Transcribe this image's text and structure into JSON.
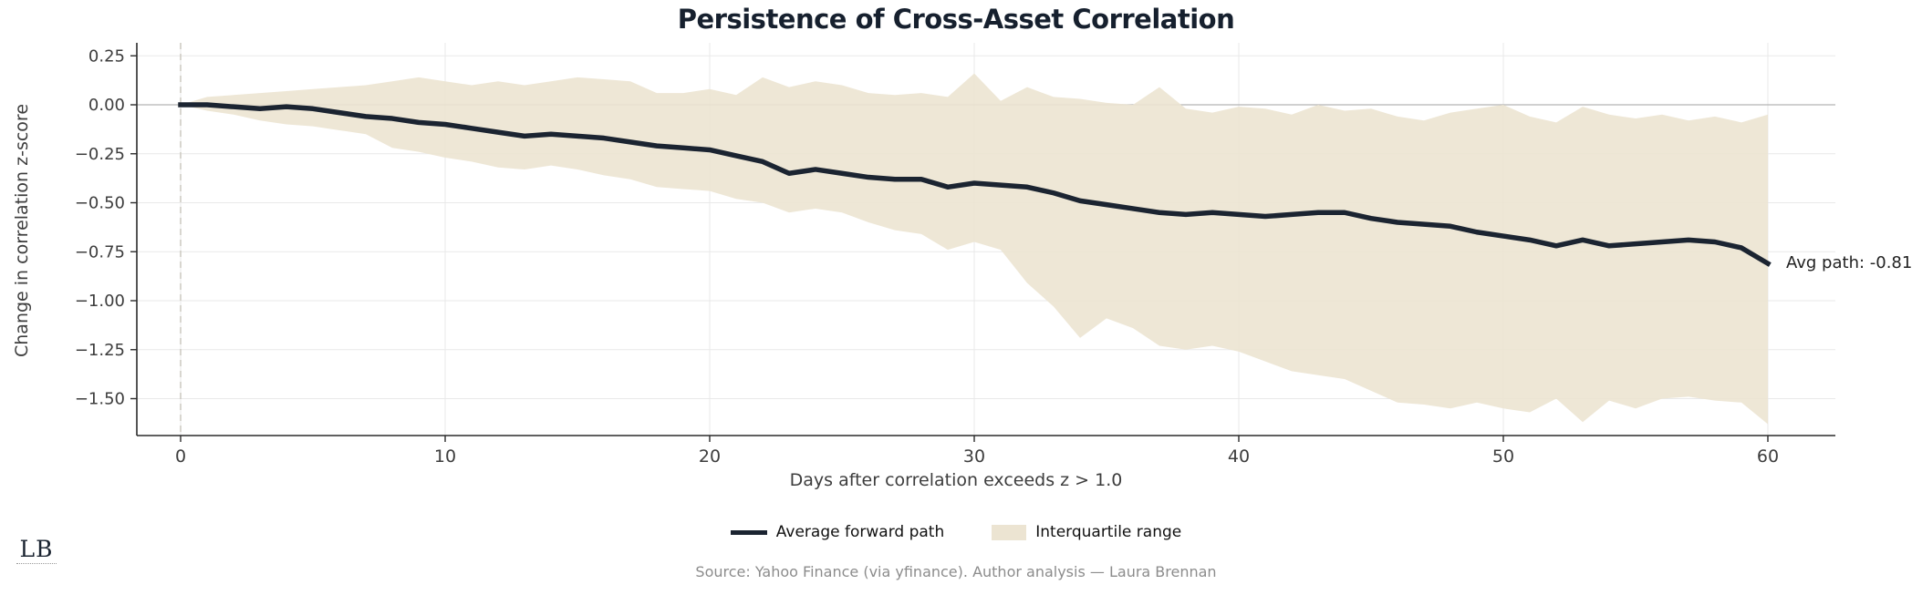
{
  "header": {
    "title": "Persistence of Cross-Asset Correlation"
  },
  "chart_data": {
    "type": "line",
    "title": "Persistence of Cross-Asset Correlation",
    "xlabel": "Days after correlation exceeds z > 1.0",
    "ylabel": "Change in correlation z-score",
    "grid": true,
    "legend_position": "bottom",
    "xlim": [
      -1.7,
      62.6
    ],
    "ylim": [
      -1.67,
      0.32
    ],
    "xticks": [
      {
        "v": 0,
        "label": "0"
      },
      {
        "v": 10,
        "label": "10"
      },
      {
        "v": 20,
        "label": "20"
      },
      {
        "v": 30,
        "label": "30"
      },
      {
        "v": 40,
        "label": "40"
      },
      {
        "v": 50,
        "label": "50"
      },
      {
        "v": 60,
        "label": "60"
      }
    ],
    "yticks": [
      {
        "v": 0.25,
        "label": "0.25"
      },
      {
        "v": 0.0,
        "label": "0.00"
      },
      {
        "v": -0.25,
        "label": "−0.25"
      },
      {
        "v": -0.5,
        "label": "−0.50"
      },
      {
        "v": -0.75,
        "label": "−0.75"
      },
      {
        "v": -1.0,
        "label": "−1.00"
      },
      {
        "v": -1.25,
        "label": "−1.25"
      },
      {
        "v": -1.5,
        "label": "−1.50"
      }
    ],
    "x": [
      0,
      1,
      2,
      3,
      4,
      5,
      6,
      7,
      8,
      9,
      10,
      11,
      12,
      13,
      14,
      15,
      16,
      17,
      18,
      19,
      20,
      21,
      22,
      23,
      24,
      25,
      26,
      27,
      28,
      29,
      30,
      31,
      32,
      33,
      34,
      35,
      36,
      37,
      38,
      39,
      40,
      41,
      42,
      43,
      44,
      45,
      46,
      47,
      48,
      49,
      50,
      51,
      52,
      53,
      54,
      55,
      56,
      57,
      58,
      59,
      60
    ],
    "series": [
      {
        "name": "Average forward path",
        "kind": "line",
        "color": "#1b2431",
        "values": [
          0.0,
          0.0,
          -0.01,
          -0.02,
          -0.01,
          -0.02,
          -0.04,
          -0.06,
          -0.07,
          -0.09,
          -0.1,
          -0.12,
          -0.14,
          -0.16,
          -0.15,
          -0.16,
          -0.17,
          -0.19,
          -0.21,
          -0.22,
          -0.23,
          -0.26,
          -0.29,
          -0.35,
          -0.33,
          -0.35,
          -0.37,
          -0.38,
          -0.38,
          -0.42,
          -0.4,
          -0.41,
          -0.42,
          -0.45,
          -0.49,
          -0.51,
          -0.53,
          -0.55,
          -0.56,
          -0.55,
          -0.56,
          -0.57,
          -0.56,
          -0.55,
          -0.55,
          -0.58,
          -0.6,
          -0.61,
          -0.62,
          -0.65,
          -0.67,
          -0.69,
          -0.72,
          -0.69,
          -0.72,
          -0.71,
          -0.7,
          -0.69,
          -0.7,
          -0.73,
          -0.81
        ]
      },
      {
        "name": "Interquartile range",
        "kind": "band",
        "color": "#ece4d2",
        "upper": [
          0.0,
          0.04,
          0.05,
          0.06,
          0.07,
          0.08,
          0.09,
          0.1,
          0.12,
          0.14,
          0.12,
          0.1,
          0.12,
          0.1,
          0.12,
          0.14,
          0.13,
          0.12,
          0.06,
          0.06,
          0.08,
          0.05,
          0.14,
          0.09,
          0.12,
          0.1,
          0.06,
          0.05,
          0.06,
          0.04,
          0.16,
          0.02,
          0.09,
          0.04,
          0.03,
          0.01,
          0.0,
          0.09,
          -0.02,
          -0.04,
          -0.01,
          -0.02,
          -0.05,
          0.0,
          -0.03,
          -0.02,
          -0.06,
          -0.08,
          -0.04,
          -0.02,
          0.0,
          -0.06,
          -0.09,
          -0.01,
          -0.05,
          -0.07,
          -0.05,
          -0.08,
          -0.06,
          -0.09,
          -0.05
        ],
        "lower": [
          0.0,
          -0.03,
          -0.05,
          -0.08,
          -0.1,
          -0.11,
          -0.13,
          -0.15,
          -0.22,
          -0.24,
          -0.27,
          -0.29,
          -0.32,
          -0.33,
          -0.31,
          -0.33,
          -0.36,
          -0.38,
          -0.42,
          -0.43,
          -0.44,
          -0.48,
          -0.5,
          -0.55,
          -0.53,
          -0.55,
          -0.6,
          -0.64,
          -0.66,
          -0.74,
          -0.7,
          -0.74,
          -0.91,
          -1.03,
          -1.19,
          -1.09,
          -1.14,
          -1.23,
          -1.25,
          -1.23,
          -1.26,
          -1.31,
          -1.36,
          -1.38,
          -1.4,
          -1.46,
          -1.52,
          -1.53,
          -1.55,
          -1.52,
          -1.55,
          -1.57,
          -1.5,
          -1.62,
          -1.51,
          -1.55,
          -1.5,
          -1.49,
          -1.51,
          -1.52,
          -1.63
        ]
      }
    ],
    "annotation": {
      "text": "Avg path: -0.81",
      "x": 60,
      "y": -0.81
    },
    "zero_line_y": 0,
    "event_line_x": 0
  },
  "legend": {
    "items": [
      {
        "label": "Average forward path",
        "swatch": "line"
      },
      {
        "label": "Interquartile range",
        "swatch": "patch"
      }
    ]
  },
  "footer": {
    "source": "Source: Yahoo Finance (via yfinance). Author analysis — Laura Brennan"
  },
  "logo": {
    "text": "LB"
  },
  "colors": {
    "line": "#1b2431",
    "band": "#ece4d2",
    "grid": "#e9e9e9",
    "zero_line": "#b4b4b4",
    "event_line": "#ccc8bf",
    "spine": "#2b2b2b",
    "tick_label": "#3d3d3d",
    "title": "#16202e",
    "footer_text": "#8c8c8c"
  }
}
